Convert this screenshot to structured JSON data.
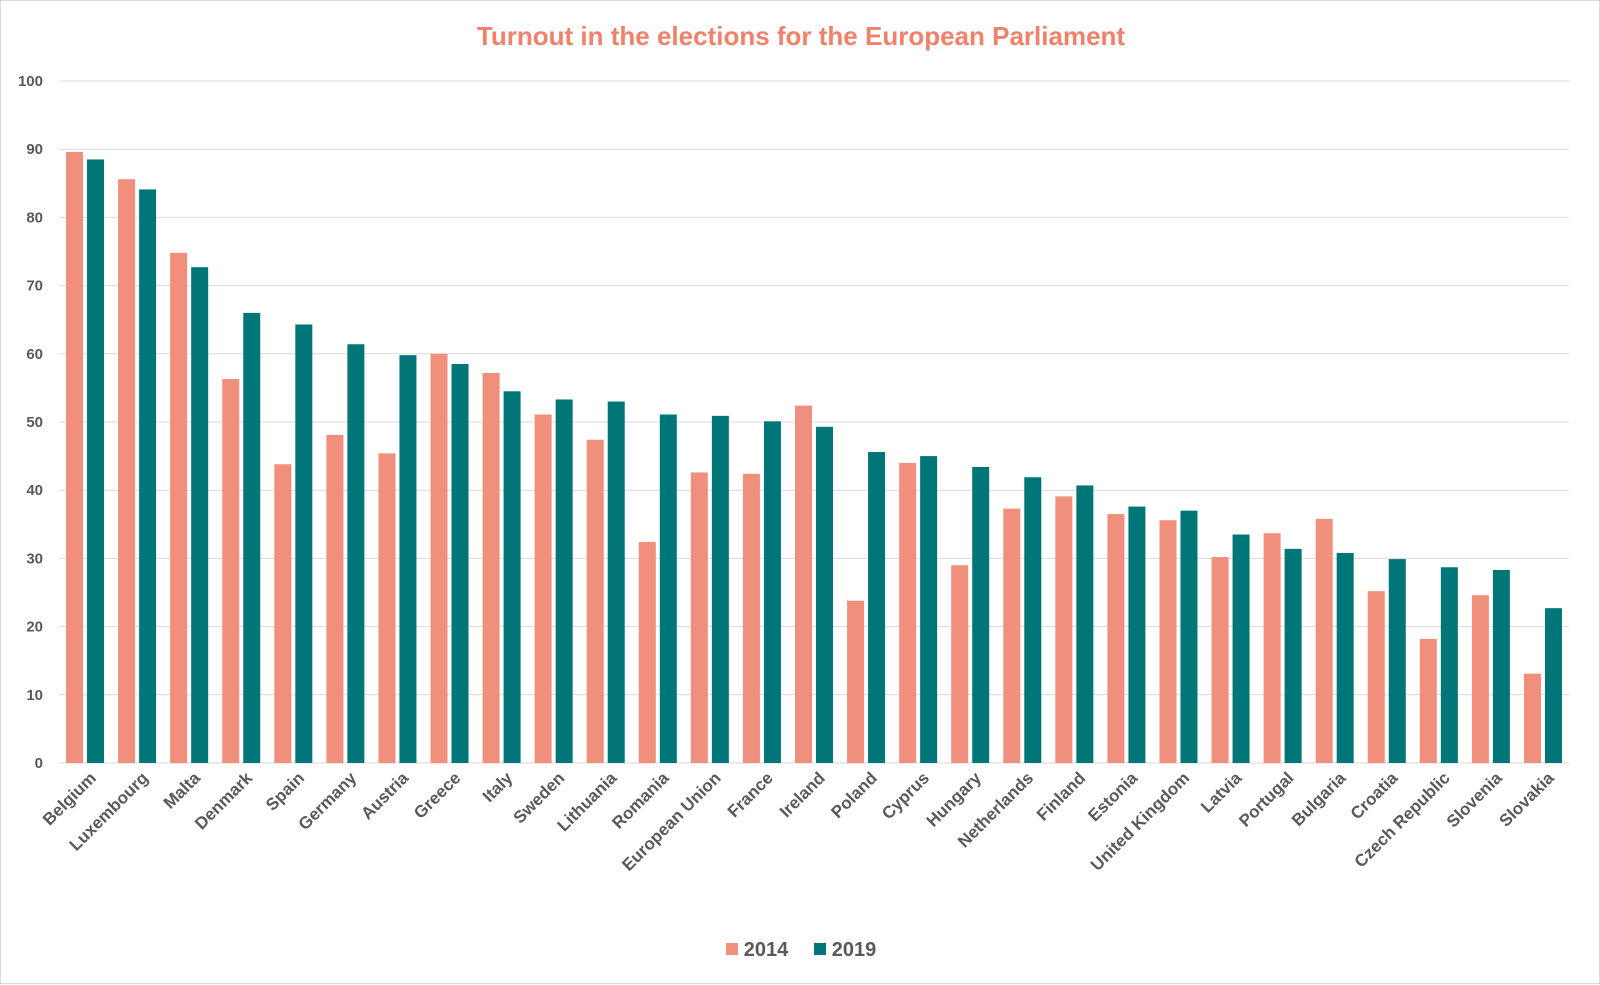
{
  "chart_data": {
    "type": "bar",
    "title": "Turnout in the elections for the European Parliament",
    "xlabel": "",
    "ylabel": "",
    "ylim": [
      0,
      100
    ],
    "yticks": [
      "0",
      "10",
      "20",
      "30",
      "40",
      "50",
      "60",
      "70",
      "80",
      "90",
      "100"
    ],
    "grid": true,
    "legend_position": "bottom",
    "categories": [
      "Belgium",
      "Luxembourg",
      "Malta",
      "Denmark",
      "Spain",
      "Germany",
      "Austria",
      "Greece",
      "Italy",
      "Sweden",
      "Lithuania",
      "Romania",
      "European Union",
      "France",
      "Ireland",
      "Poland",
      "Cyprus",
      "Hungary",
      "Netherlands",
      "Finland",
      "Estonia",
      "United Kingdom",
      "Latvia",
      "Portugal",
      "Bulgaria",
      "Croatia",
      "Czech Republic",
      "Slovenia",
      "Slovakia"
    ],
    "series": [
      {
        "name": "2014",
        "color": "#f0907c",
        "values": [
          89.6,
          85.6,
          74.8,
          56.3,
          43.8,
          48.1,
          45.4,
          60.0,
          57.2,
          51.1,
          47.4,
          32.4,
          42.6,
          42.4,
          52.4,
          23.8,
          44.0,
          29.0,
          37.3,
          39.1,
          36.5,
          35.6,
          30.2,
          33.7,
          35.8,
          25.2,
          18.2,
          24.6,
          13.1
        ]
      },
      {
        "name": "2019",
        "color": "#007678",
        "values": [
          88.5,
          84.1,
          72.7,
          66.0,
          64.3,
          61.4,
          59.8,
          58.5,
          54.5,
          53.3,
          53.0,
          51.1,
          50.9,
          50.1,
          49.3,
          45.6,
          45.0,
          43.4,
          41.9,
          40.7,
          37.6,
          37.0,
          33.5,
          31.4,
          30.8,
          29.9,
          28.7,
          28.3,
          22.7
        ]
      }
    ]
  }
}
